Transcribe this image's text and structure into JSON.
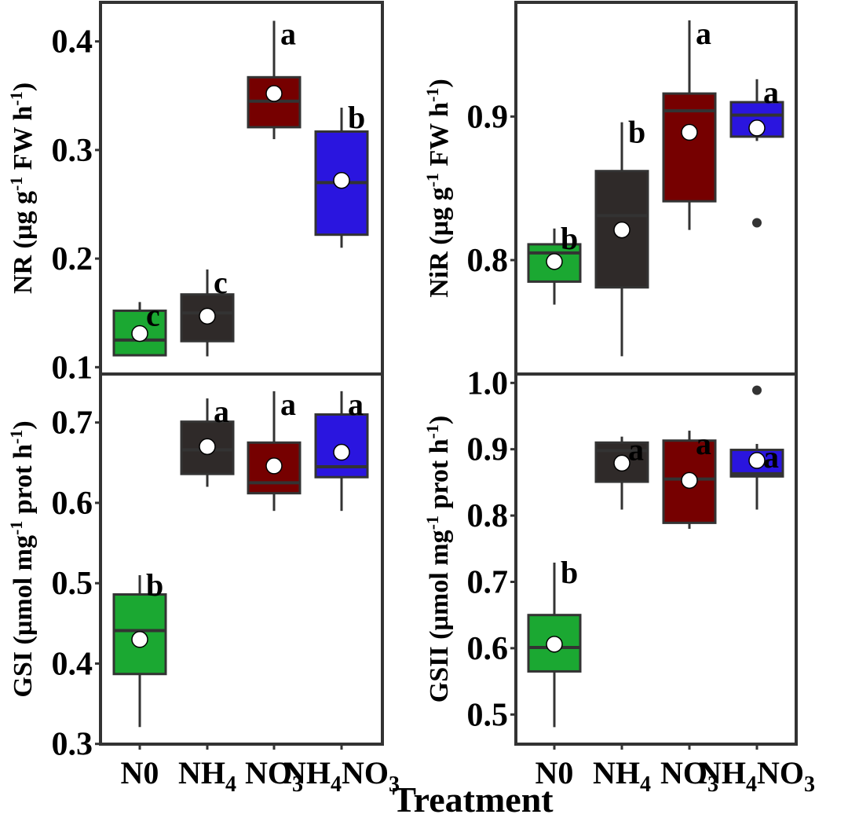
{
  "figure": {
    "x_axis_title": "Treatment"
  },
  "colors": {
    "N0": "#1ba832",
    "NH4": "#2f2a29",
    "NO3": "#760000",
    "NH4NO3": "#2a15df",
    "outline": "#333333",
    "mean_marker": "#ffffff"
  },
  "chart_data": [
    {
      "type": "box",
      "panel": "top-left",
      "title": "",
      "ylabel": {
        "main": "NR (µg g",
        "sup1": "-1",
        "mid": " FW h",
        "sup2": "-1",
        "end": ")"
      },
      "xlabel": "",
      "ylim": [
        0.1,
        0.42
      ],
      "yticks": [
        0.1,
        0.2,
        0.3,
        0.4
      ],
      "ytick_labels": [
        "0.1",
        "0.2",
        "0.3",
        "0.4"
      ],
      "grid": false,
      "categories": [
        "N0",
        "NH4",
        "NO3",
        "NH4NO3"
      ],
      "boxes": [
        {
          "category": "N0",
          "whisker_low": 0.11,
          "q1": 0.111,
          "median": 0.125,
          "q3": 0.152,
          "whisker_high": 0.16,
          "mean": 0.131,
          "outliers": [],
          "letter": "c"
        },
        {
          "category": "NH4",
          "whisker_low": 0.11,
          "q1": 0.124,
          "median": 0.15,
          "q3": 0.167,
          "whisker_high": 0.19,
          "mean": 0.147,
          "outliers": [],
          "letter": "c"
        },
        {
          "category": "NO3",
          "whisker_low": 0.31,
          "q1": 0.321,
          "median": 0.345,
          "q3": 0.367,
          "whisker_high": 0.419,
          "mean": 0.352,
          "outliers": [],
          "letter": "a"
        },
        {
          "category": "NH4NO3",
          "whisker_low": 0.21,
          "q1": 0.222,
          "median": 0.27,
          "q3": 0.317,
          "whisker_high": 0.339,
          "mean": 0.272,
          "outliers": [],
          "letter": "b"
        }
      ]
    },
    {
      "type": "box",
      "panel": "top-right",
      "title": "",
      "ylabel": {
        "main": "NiR (µg g",
        "sup1": "-1",
        "mid": " FW h",
        "sup2": "-1",
        "end": ")"
      },
      "xlabel": "",
      "ylim": [
        0.72,
        0.98
      ],
      "yticks": [
        0.8,
        0.9
      ],
      "ytick_labels": [
        "0.8",
        "0.9"
      ],
      "grid": false,
      "categories": [
        "N0",
        "NH4",
        "NO3",
        "NH4NO3"
      ],
      "boxes": [
        {
          "category": "N0",
          "whisker_low": 0.769,
          "q1": 0.785,
          "median": 0.805,
          "q3": 0.811,
          "whisker_high": 0.822,
          "mean": 0.799,
          "outliers": [],
          "letter": "b"
        },
        {
          "category": "NH4",
          "whisker_low": 0.733,
          "q1": 0.781,
          "median": 0.831,
          "q3": 0.862,
          "whisker_high": 0.896,
          "mean": 0.821,
          "outliers": [],
          "letter": "b"
        },
        {
          "category": "NO3",
          "whisker_low": 0.821,
          "q1": 0.841,
          "median": 0.904,
          "q3": 0.916,
          "whisker_high": 0.967,
          "mean": 0.889,
          "outliers": [],
          "letter": "a"
        },
        {
          "category": "NH4NO3",
          "whisker_low": 0.883,
          "q1": 0.886,
          "median": 0.901,
          "q3": 0.91,
          "whisker_high": 0.926,
          "mean": 0.892,
          "outliers": [
            0.826
          ],
          "letter": "a"
        }
      ]
    },
    {
      "type": "box",
      "panel": "bottom-left",
      "title": "",
      "ylabel": {
        "main": "GSI (µmol mg",
        "sup1": "-1",
        "mid": " prot h",
        "sup2": "-1",
        "end": ")"
      },
      "xlabel": "Treatment",
      "ylim": [
        0.3,
        0.76
      ],
      "yticks": [
        0.3,
        0.4,
        0.5,
        0.6,
        0.7
      ],
      "ytick_labels": [
        "0.3",
        "0.4",
        "0.5",
        "0.6",
        "0.7"
      ],
      "grid": false,
      "categories": [
        "N0",
        "NH4",
        "NO3",
        "NH4NO3"
      ],
      "boxes": [
        {
          "category": "N0",
          "whisker_low": 0.321,
          "q1": 0.387,
          "median": 0.441,
          "q3": 0.486,
          "whisker_high": 0.51,
          "mean": 0.43,
          "outliers": [],
          "letter": "b"
        },
        {
          "category": "NH4",
          "whisker_low": 0.62,
          "q1": 0.636,
          "median": 0.666,
          "q3": 0.701,
          "whisker_high": 0.73,
          "mean": 0.67,
          "outliers": [],
          "letter": "a"
        },
        {
          "category": "NO3",
          "whisker_low": 0.59,
          "q1": 0.612,
          "median": 0.625,
          "q3": 0.675,
          "whisker_high": 0.739,
          "mean": 0.646,
          "outliers": [],
          "letter": "a"
        },
        {
          "category": "NH4NO3",
          "whisker_low": 0.59,
          "q1": 0.632,
          "median": 0.645,
          "q3": 0.71,
          "whisker_high": 0.739,
          "mean": 0.663,
          "outliers": [],
          "letter": "a"
        }
      ]
    },
    {
      "type": "box",
      "panel": "bottom-right",
      "title": "",
      "ylabel": {
        "main": "GSII (µmol mg",
        "sup1": "-1",
        "mid": " prot h",
        "sup2": "-1",
        "end": ")"
      },
      "xlabel": "Treatment",
      "ylim": [
        0.455,
        1.015
      ],
      "yticks": [
        0.5,
        0.6,
        0.7,
        0.8,
        0.9,
        1.0
      ],
      "ytick_labels": [
        "0.5",
        "0.6",
        "0.7",
        "0.8",
        "0.9",
        "1.0"
      ],
      "grid": false,
      "categories": [
        "N0",
        "NH4",
        "NO3",
        "NH4NO3"
      ],
      "boxes": [
        {
          "category": "N0",
          "whisker_low": 0.481,
          "q1": 0.565,
          "median": 0.601,
          "q3": 0.65,
          "whisker_high": 0.729,
          "mean": 0.606,
          "outliers": [],
          "letter": "b"
        },
        {
          "category": "NH4",
          "whisker_low": 0.809,
          "q1": 0.851,
          "median": 0.898,
          "q3": 0.91,
          "whisker_high": 0.919,
          "mean": 0.879,
          "outliers": [],
          "letter": "a"
        },
        {
          "category": "NO3",
          "whisker_low": 0.78,
          "q1": 0.789,
          "median": 0.855,
          "q3": 0.913,
          "whisker_high": 0.928,
          "mean": 0.853,
          "outliers": [],
          "letter": "a"
        },
        {
          "category": "NH4NO3",
          "whisker_low": 0.809,
          "q1": 0.859,
          "median": 0.863,
          "q3": 0.899,
          "whisker_high": 0.908,
          "mean": 0.883,
          "outliers": [
            0.989
          ],
          "letter": "a"
        }
      ]
    }
  ],
  "x_tick_labels": [
    {
      "base": "N0",
      "sub": "",
      "base2": "",
      "sub2": ""
    },
    {
      "base": "NH",
      "sub": "4",
      "base2": "",
      "sub2": ""
    },
    {
      "base": "NO",
      "sub": "3",
      "base2": "",
      "sub2": ""
    },
    {
      "base": "NH",
      "sub": "4",
      "base2": "NO",
      "sub2": "3"
    }
  ]
}
